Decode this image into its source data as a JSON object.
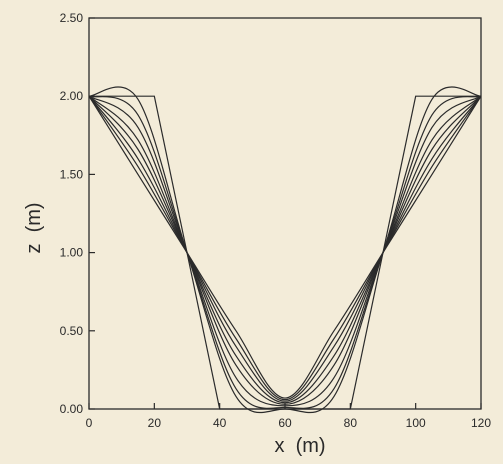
{
  "chart_data": {
    "type": "line",
    "title": "",
    "xlabel": "x  (m)",
    "ylabel": "z  (m)",
    "xlim": [
      0,
      120
    ],
    "ylim": [
      0,
      2.5
    ],
    "xticks": [
      0,
      20,
      40,
      60,
      80,
      100,
      120
    ],
    "xtick_labels": [
      "0",
      "20",
      "40",
      "60",
      "80",
      "100",
      "120"
    ],
    "yticks": [
      0,
      0.5,
      1.0,
      1.5,
      2.0,
      2.5
    ],
    "ytick_labels": [
      "0.00",
      "0.50",
      "1.00",
      "1.50",
      "2.00",
      "2.50"
    ],
    "grid": false,
    "legend": "none",
    "colors": {
      "line": "#2b2b2b",
      "axis": "#2b2b2b",
      "background": "#f3ecd9"
    },
    "series": [
      {
        "x": [
          0,
          20,
          40,
          80,
          100,
          120
        ],
        "y": [
          2.0,
          2.0,
          0.0,
          0.0,
          2.0,
          2.0
        ]
      },
      {
        "x": [
          0,
          15,
          30,
          45,
          60,
          75,
          90,
          105,
          120
        ],
        "y": [
          2.0,
          1.98,
          1.0,
          0.08,
          0.0,
          0.08,
          1.0,
          1.98,
          2.0
        ]
      },
      {
        "x": [
          0,
          15,
          30,
          45,
          60,
          75,
          90,
          105,
          120
        ],
        "y": [
          2.0,
          1.88,
          1.0,
          0.13,
          0.01,
          0.13,
          1.0,
          1.88,
          2.0
        ]
      },
      {
        "x": [
          0,
          15,
          30,
          45,
          60,
          75,
          90,
          105,
          120
        ],
        "y": [
          2.0,
          1.8,
          1.0,
          0.2,
          0.02,
          0.2,
          1.0,
          1.8,
          2.0
        ]
      },
      {
        "x": [
          0,
          15,
          30,
          45,
          60,
          75,
          90,
          105,
          120
        ],
        "y": [
          2.0,
          1.72,
          1.0,
          0.28,
          0.03,
          0.28,
          1.0,
          1.72,
          2.0
        ]
      },
      {
        "x": [
          0,
          15,
          30,
          45,
          60,
          75,
          90,
          105,
          120
        ],
        "y": [
          2.0,
          1.66,
          1.0,
          0.34,
          0.04,
          0.34,
          1.0,
          1.66,
          2.0
        ]
      },
      {
        "x": [
          0,
          15,
          30,
          45,
          60,
          75,
          90,
          105,
          120
        ],
        "y": [
          2.0,
          1.6,
          1.0,
          0.4,
          0.05,
          0.4,
          1.0,
          1.6,
          2.0
        ]
      },
      {
        "x": [
          0,
          15,
          30,
          45,
          60,
          75,
          90,
          105,
          120
        ],
        "y": [
          2.0,
          1.55,
          1.0,
          0.45,
          0.06,
          0.45,
          1.0,
          1.55,
          2.0
        ]
      },
      {
        "x": [
          0,
          15,
          30,
          45,
          60,
          75,
          90,
          105,
          120
        ],
        "y": [
          2.0,
          1.5,
          1.0,
          0.5,
          0.07,
          0.5,
          1.0,
          1.5,
          2.0
        ]
      }
    ]
  }
}
